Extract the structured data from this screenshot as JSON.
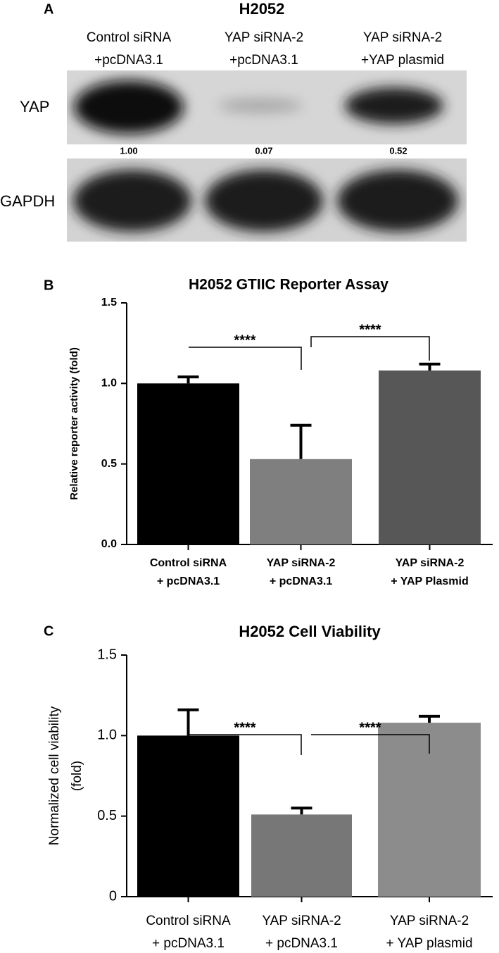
{
  "panel_a": {
    "label": "A",
    "title": "H2052",
    "lanes": [
      [
        "Control siRNA",
        "+pcDNA3.1"
      ],
      [
        "YAP siRNA-2",
        "+pcDNA3.1"
      ],
      [
        "YAP siRNA-2",
        "+YAP plasmid"
      ]
    ],
    "blots": [
      {
        "name": "YAP",
        "quantification": [
          "1.00",
          "0.07",
          "0.52"
        ]
      },
      {
        "name": "GAPDH"
      }
    ]
  },
  "chart_data": [
    {
      "type": "bar",
      "panel_label": "B",
      "title": "H2052 GTIIC Reporter Assay",
      "y_label": "Relative reporter activity (fold)",
      "categories": [
        [
          "Control siRNA",
          "+ pcDNA3.1"
        ],
        [
          "YAP siRNA-2",
          "+ pcDNA3.1"
        ],
        [
          "YAP siRNA-2",
          "+ YAP Plasmid"
        ]
      ],
      "values": [
        1.0,
        0.53,
        1.08
      ],
      "errors": [
        0.04,
        0.21,
        0.04
      ],
      "colors": [
        "#000000",
        "#7f7f7f",
        "#575757"
      ],
      "ylim": [
        0,
        1.5
      ],
      "yticks": [
        {
          "value": 0,
          "label": "0.0"
        },
        0.5,
        {
          "value": 1,
          "label": "1.0"
        },
        1.5
      ],
      "annotations": [
        "****",
        "****"
      ]
    },
    {
      "type": "bar",
      "panel_label": "C",
      "title": "H2052 Cell Viability",
      "y_label": [
        "Normalized cell viability",
        "(fold)"
      ],
      "categories": [
        [
          "Control siRNA",
          "+ pcDNA3.1"
        ],
        [
          "YAP siRNA-2",
          "+ pcDNA3.1"
        ],
        [
          "YAP siRNA-2",
          "+ YAP plasmid"
        ]
      ],
      "values": [
        1.0,
        0.51,
        1.08
      ],
      "errors": [
        0.16,
        0.04,
        0.04
      ],
      "colors": [
        "#000000",
        "#777777",
        "#8c8c8c"
      ],
      "ylim": [
        0,
        1.5
      ],
      "yticks": [
        0,
        0.5,
        {
          "value": 1,
          "label": "1.0"
        },
        1.5
      ],
      "annotations": [
        "****",
        "****"
      ]
    }
  ]
}
